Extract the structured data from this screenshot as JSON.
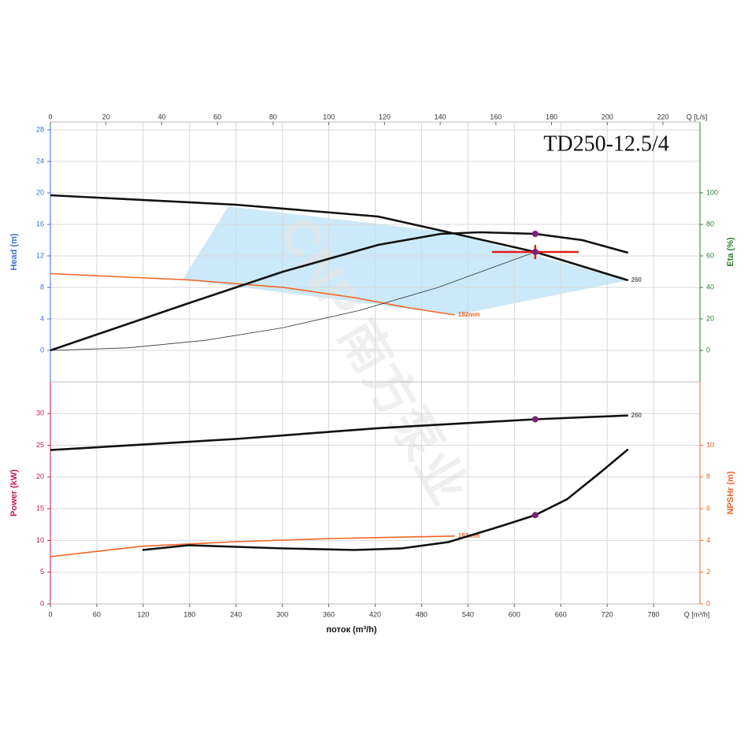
{
  "watermark": "CNP 南方泵业",
  "chart_data": [
    {
      "type": "line",
      "title": "TD250-12.5/4",
      "xlim": [
        0,
        840
      ],
      "x2lim": [
        0,
        233.3
      ],
      "x2ticks": [
        0,
        20,
        40,
        60,
        80,
        100,
        120,
        140,
        160,
        180,
        200,
        220
      ],
      "x2label": "Q [L/s]",
      "ylim": [
        -4,
        29
      ],
      "yticks": [
        0,
        4,
        8,
        12,
        16,
        20,
        24,
        28
      ],
      "ylabel": "Head (m)",
      "ycolor": "#3a6fd8",
      "y2lim": [
        -20,
        145
      ],
      "y2ticks": [
        0,
        20,
        40,
        60,
        80,
        100
      ],
      "y2label": "Eta (%)",
      "y2color": "#2e7d32",
      "grid": true,
      "series": [
        {
          "name": "260",
          "color": "#111111",
          "width": 2.6,
          "x": [
            0,
            240,
            424,
            515,
            627,
            747
          ],
          "values": [
            19.7,
            18.5,
            17,
            15,
            12.5,
            8.9
          ]
        },
        {
          "name": "182mm",
          "color": "#f26522",
          "width": 1.6,
          "x": [
            0,
            179,
            301,
            393,
            464,
            523
          ],
          "values": [
            9.75,
            8.95,
            8,
            6.7,
            5.4,
            4.5
          ]
        },
        {
          "color": "#111111",
          "width": 2.6,
          "axis": "y2",
          "x": [
            0,
            179,
            301,
            424,
            505,
            556,
            627,
            688,
            747
          ],
          "values": [
            0,
            30,
            50,
            67,
            74,
            75,
            74,
            70,
            62
          ]
        },
        {
          "color": "#333333",
          "width": 0.8,
          "x": [
            0,
            100,
            200,
            300,
            400,
            500,
            627
          ],
          "values": [
            0,
            0.32,
            1.27,
            2.86,
            5.09,
            7.95,
            12.5
          ]
        }
      ],
      "points": [
        {
          "x": 627,
          "y": 12.5,
          "marker": "cross"
        },
        {
          "x": 627,
          "y": 74,
          "axis": "y2",
          "marker": "dot"
        }
      ]
    },
    {
      "type": "line",
      "xlim": [
        0,
        840
      ],
      "xticks": [
        0,
        60,
        120,
        180,
        240,
        300,
        360,
        420,
        480,
        540,
        600,
        660,
        720,
        780
      ],
      "xlabel": "Q [m³/h]",
      "xtitle": "поток (m³/h)",
      "ylim": [
        0,
        35
      ],
      "yticks": [
        0,
        5,
        10,
        15,
        20,
        25,
        30
      ],
      "ylabel": "Power (kW)",
      "ycolor": "#c2185b",
      "y2lim": [
        0,
        14
      ],
      "y2ticks": [
        0,
        2,
        4,
        6,
        8,
        10
      ],
      "y2label": "NPSHr (m)",
      "y2color": "#f26522",
      "grid": true,
      "series": [
        {
          "name": "260",
          "color": "#111111",
          "width": 2.6,
          "x": [
            0,
            240,
            424,
            627,
            747
          ],
          "values": [
            24.25,
            26,
            27.7,
            29.1,
            29.7
          ]
        },
        {
          "name": "182mm",
          "color": "#f26522",
          "width": 1.6,
          "x": [
            0,
            119,
            240,
            362,
            523
          ],
          "values": [
            7.45,
            9.1,
            9.8,
            10.3,
            10.7
          ]
        },
        {
          "color": "#111111",
          "width": 2.6,
          "axis": "y2",
          "x": [
            119,
            179,
            240,
            301,
            393,
            454,
            515,
            576,
            627,
            668,
            709,
            747
          ],
          "values": [
            3.4,
            3.7,
            3.6,
            3.5,
            3.4,
            3.5,
            3.9,
            4.8,
            5.6,
            6.6,
            8.2,
            9.75
          ]
        }
      ],
      "points": [
        {
          "x": 627,
          "y": 29.1,
          "marker": "dot"
        },
        {
          "x": 627,
          "y": 5.6,
          "axis": "y2",
          "marker": "dot"
        }
      ]
    }
  ]
}
